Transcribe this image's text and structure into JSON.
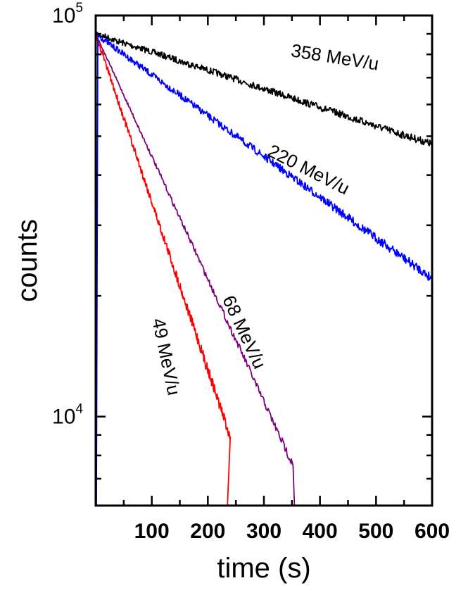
{
  "chart_data": {
    "type": "line",
    "xlabel": "time (s)",
    "ylabel": "counts",
    "xlim": [
      0,
      600
    ],
    "ylim": [
      6000,
      100000
    ],
    "yscale": "log",
    "grid": false,
    "legend": "none",
    "x_ticks": [
      {
        "value": 100,
        "label": "100"
      },
      {
        "value": 200,
        "label": "200"
      },
      {
        "value": 300,
        "label": "300"
      },
      {
        "value": 400,
        "label": "400"
      },
      {
        "value": 500,
        "label": "500"
      },
      {
        "value": 600,
        "label": "600"
      }
    ],
    "y_ticks": [
      {
        "value": 10000,
        "base": "10",
        "exp": "4"
      },
      {
        "value": 100000,
        "base": "10",
        "exp": "5"
      }
    ],
    "series": [
      {
        "name": "358 MeV/u",
        "color": "#000000",
        "x": [
          0,
          12,
          24,
          36,
          48,
          60,
          72,
          84,
          96,
          108,
          120,
          132,
          144,
          156,
          168,
          180,
          192,
          204,
          216,
          228,
          240,
          252,
          264,
          276,
          288,
          300,
          312,
          324,
          336,
          348,
          360,
          372,
          384,
          396,
          408,
          420,
          432,
          444,
          456,
          468,
          480,
          492,
          504,
          516,
          528,
          540,
          552,
          564,
          576,
          588,
          600
        ],
        "y": [
          90000,
          89000,
          88000,
          86500,
          85500,
          84500,
          83500,
          82500,
          81500,
          80500,
          79500,
          78500,
          77500,
          76500,
          75500,
          74600,
          73700,
          72800,
          71900,
          71000,
          70100,
          69200,
          68300,
          67400,
          66500,
          65700,
          64800,
          64000,
          63200,
          62400,
          61600,
          60800,
          60000,
          59300,
          58500,
          57800,
          57000,
          56300,
          55600,
          54900,
          54200,
          53500,
          52800,
          52100,
          51500,
          50800,
          50200,
          49600,
          49000,
          48400,
          47800
        ]
      },
      {
        "name": "220 MeV/u",
        "color": "#0000ff",
        "x": [
          0,
          12,
          24,
          36,
          48,
          60,
          72,
          84,
          96,
          108,
          120,
          132,
          144,
          156,
          168,
          180,
          192,
          204,
          216,
          228,
          240,
          252,
          264,
          276,
          288,
          300,
          312,
          324,
          336,
          348,
          360,
          372,
          384,
          396,
          408,
          420,
          432,
          444,
          456,
          468,
          480,
          492,
          504,
          516,
          528,
          540,
          552,
          564,
          576,
          588,
          600
        ],
        "y": [
          90000,
          87500,
          85000,
          82700,
          80400,
          78200,
          76000,
          73900,
          71800,
          69800,
          67900,
          66000,
          64200,
          62400,
          60600,
          59000,
          57300,
          55700,
          54200,
          52700,
          51200,
          49800,
          48400,
          47100,
          45800,
          44500,
          43300,
          42100,
          40900,
          39800,
          38700,
          37600,
          36600,
          35600,
          34600,
          33600,
          32700,
          31800,
          30900,
          30000,
          29200,
          28400,
          27600,
          26900,
          26100,
          25400,
          24700,
          24000,
          23400,
          22700,
          22100
        ]
      },
      {
        "name": "68 MeV/u",
        "color": "#800080",
        "x": [
          0,
          15,
          30,
          45,
          60,
          75,
          90,
          105,
          120,
          135,
          150,
          165,
          180,
          195,
          210,
          225,
          240,
          255,
          270,
          285,
          300,
          315,
          330,
          345,
          352
        ],
        "y": [
          90000,
          81000,
          72900,
          65600,
          59000,
          53100,
          47800,
          43000,
          38700,
          34800,
          31300,
          28200,
          25400,
          22800,
          20500,
          18500,
          16600,
          15000,
          13500,
          12100,
          10900,
          9800,
          8820,
          7940,
          7560
        ]
      },
      {
        "name": "49 MeV/u",
        "color": "#ff0000",
        "x": [
          0,
          10,
          20,
          30,
          40,
          50,
          60,
          70,
          80,
          90,
          100,
          110,
          120,
          130,
          140,
          150,
          160,
          170,
          180,
          190,
          200,
          210,
          220,
          230,
          240
        ],
        "y": [
          90000,
          81800,
          74200,
          67400,
          61200,
          55600,
          50400,
          45800,
          41600,
          37800,
          34300,
          31100,
          28300,
          25700,
          23300,
          21200,
          19200,
          17500,
          15900,
          14400,
          13100,
          11900,
          10800,
          9800,
          8900
        ]
      }
    ],
    "annotations": [
      {
        "text": "358 MeV/u",
        "series": "358 MeV/u",
        "x": 425,
        "y": 76000,
        "angle": 9
      },
      {
        "text": "220 MeV/u",
        "series": "220 MeV/u",
        "x": 375,
        "y": 40000,
        "angle": 27
      },
      {
        "text": "68 MeV/u",
        "series": "68 MeV/u",
        "x": 255,
        "y": 16000,
        "angle": 65
      },
      {
        "text": "49 MeV/u",
        "series": "49 MeV/u",
        "x": 115,
        "y": 14000,
        "angle": 78
      }
    ]
  }
}
